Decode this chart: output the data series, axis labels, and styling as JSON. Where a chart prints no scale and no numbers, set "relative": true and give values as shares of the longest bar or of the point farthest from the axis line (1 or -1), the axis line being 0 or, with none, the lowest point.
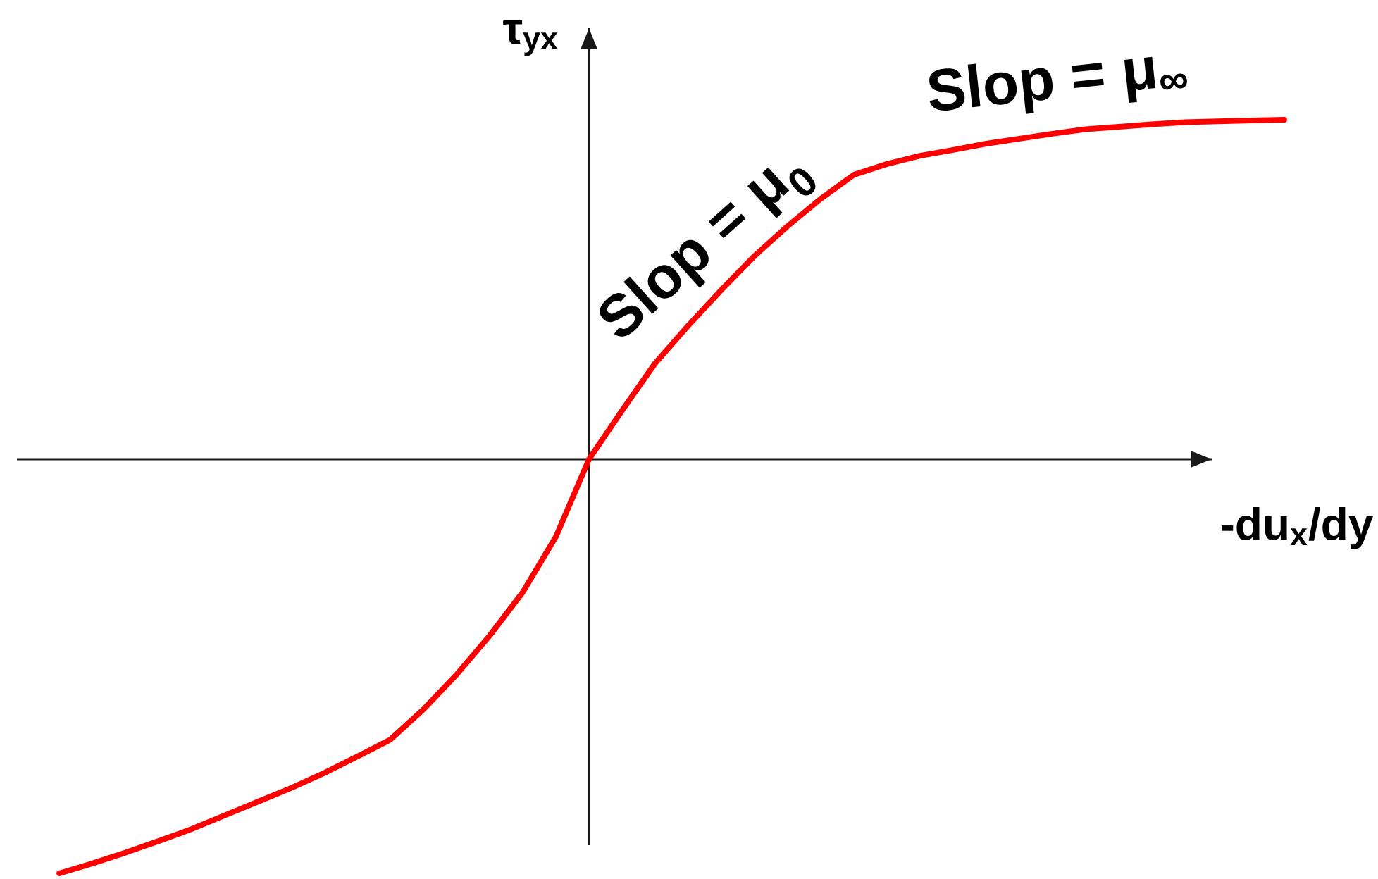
{
  "chart_data": {
    "type": "line",
    "xlabel": "-du$_{x}$/dy",
    "ylabel": "τ$_{yx}$",
    "annotations": [
      "Slop = μ$_{0}$",
      "Slop = μ$_{∞}$"
    ],
    "relative": true,
    "marker": "none",
    "line_style": "solid",
    "categories": [
      null,
      null,
      null,
      null,
      null,
      null,
      null,
      null,
      null,
      null,
      null,
      null,
      null,
      null,
      null,
      null,
      null,
      null,
      null,
      null,
      null,
      null,
      null,
      null,
      null,
      null,
      null,
      null,
      null,
      null,
      null,
      null,
      null,
      null,
      null,
      null,
      null,
      null
    ],
    "series": [
      {
        "color": "#ff0000",
        "values": [
          -1,
          -0.976,
          -0.95,
          -0.922,
          -0.893,
          -0.86,
          -0.827,
          -0.794,
          -0.758,
          -0.718,
          -0.677,
          -0.604,
          -0.52,
          -0.426,
          -0.321,
          -0.187,
          0,
          0.118,
          0.232,
          0.323,
          0.409,
          0.491,
          0.563,
          0.629,
          0.687,
          0.713,
          0.733,
          0.747,
          0.762,
          0.774,
          0.786,
          0.797,
          0.803,
          0.809,
          0.814,
          0.816,
          0.818,
          0.82
        ]
      }
    ]
  }
}
